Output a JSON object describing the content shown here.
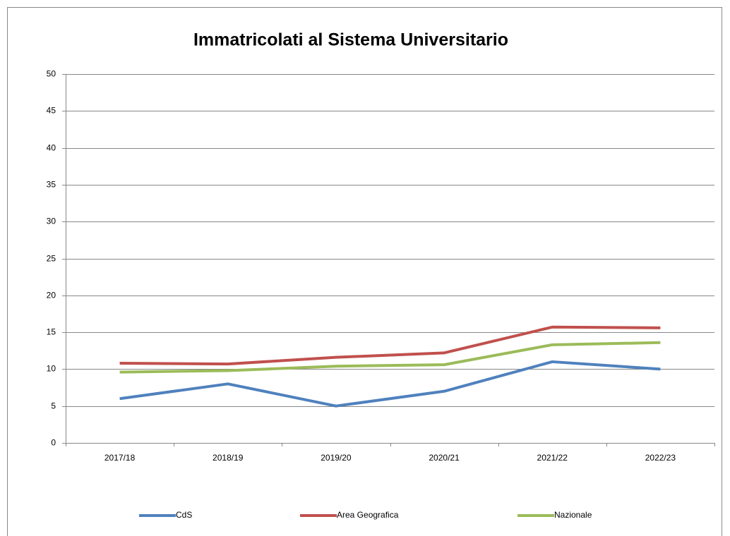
{
  "chart_data": {
    "type": "line",
    "title": "Immatricolati al Sistema Universitario",
    "categories": [
      "2017/18",
      "2018/19",
      "2019/20",
      "2020/21",
      "2021/22",
      "2022/23"
    ],
    "series": [
      {
        "name": "CdS",
        "color": "#4f81bd",
        "values": [
          6,
          8,
          5,
          7,
          11,
          10
        ]
      },
      {
        "name": "Area Geografica",
        "color": "#c0504d",
        "values": [
          10.8,
          10.7,
          11.6,
          12.2,
          15.7,
          15.6
        ]
      },
      {
        "name": "Nazionale",
        "color": "#9bbb59",
        "values": [
          9.6,
          9.8,
          10.4,
          10.6,
          13.3,
          13.6
        ]
      }
    ],
    "ylim": [
      0,
      50
    ],
    "yticks": [
      0,
      5,
      10,
      15,
      20,
      25,
      30,
      35,
      40,
      45,
      50
    ],
    "grid": true,
    "legend": "bottom"
  }
}
